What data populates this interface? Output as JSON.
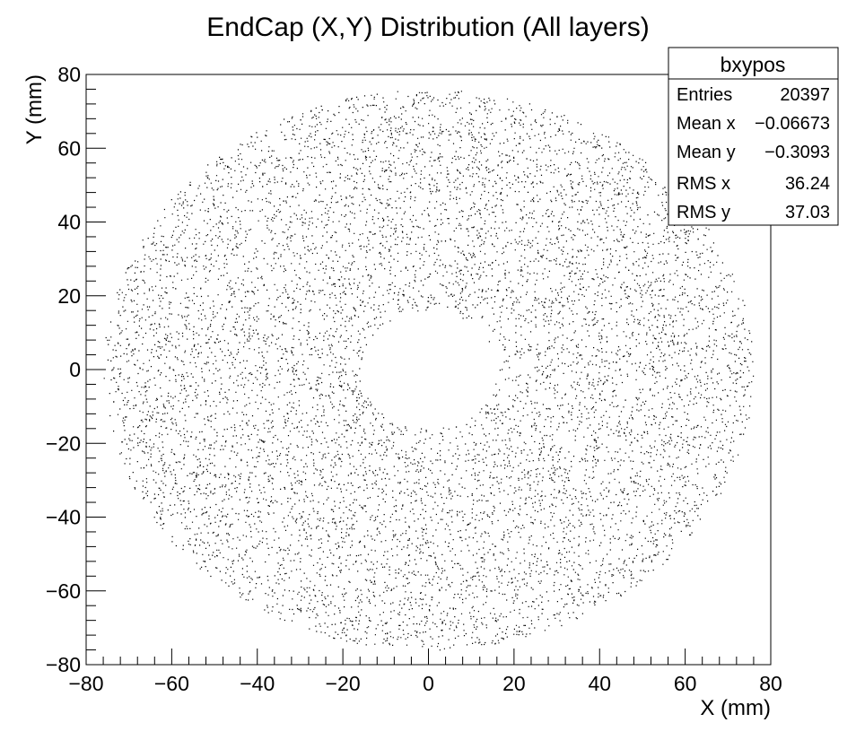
{
  "colors": {
    "background": "#ffffff",
    "points": "#000000",
    "frame": "#000000"
  },
  "stats_box": {
    "title": "bxypos",
    "rows": [
      {
        "label": "Entries",
        "value": "20397"
      },
      {
        "label": "Mean x",
        "value": "−0.06673"
      },
      {
        "label": "Mean y",
        "value": "−0.3093"
      },
      {
        "label": "RMS x",
        "value": "36.24"
      },
      {
        "label": "RMS y",
        "value": "37.03"
      }
    ]
  },
  "chart_data": {
    "type": "scatter",
    "title": "EndCap (X,Y) Distribution (All layers)",
    "xlabel": "X (mm)",
    "ylabel": "Y (mm)",
    "xlim": [
      -80,
      80
    ],
    "ylim": [
      -80,
      80
    ],
    "x_ticks": [
      -80,
      -60,
      -40,
      -20,
      0,
      20,
      40,
      60,
      80
    ],
    "y_ticks": [
      -80,
      -60,
      -40,
      -20,
      0,
      20,
      40,
      60,
      80
    ],
    "x_tick_labels": [
      "−80",
      "−60",
      "−40",
      "−20",
      "0",
      "20",
      "40",
      "60",
      "80"
    ],
    "y_tick_labels": [
      "−80",
      "−60",
      "−40",
      "−20",
      "0",
      "20",
      "40",
      "60",
      "80"
    ],
    "grid": false,
    "distribution": {
      "shape": "annulus",
      "center": [
        0,
        0
      ],
      "inner_radius": 16,
      "outer_radius": 76,
      "entries": 20397
    }
  }
}
